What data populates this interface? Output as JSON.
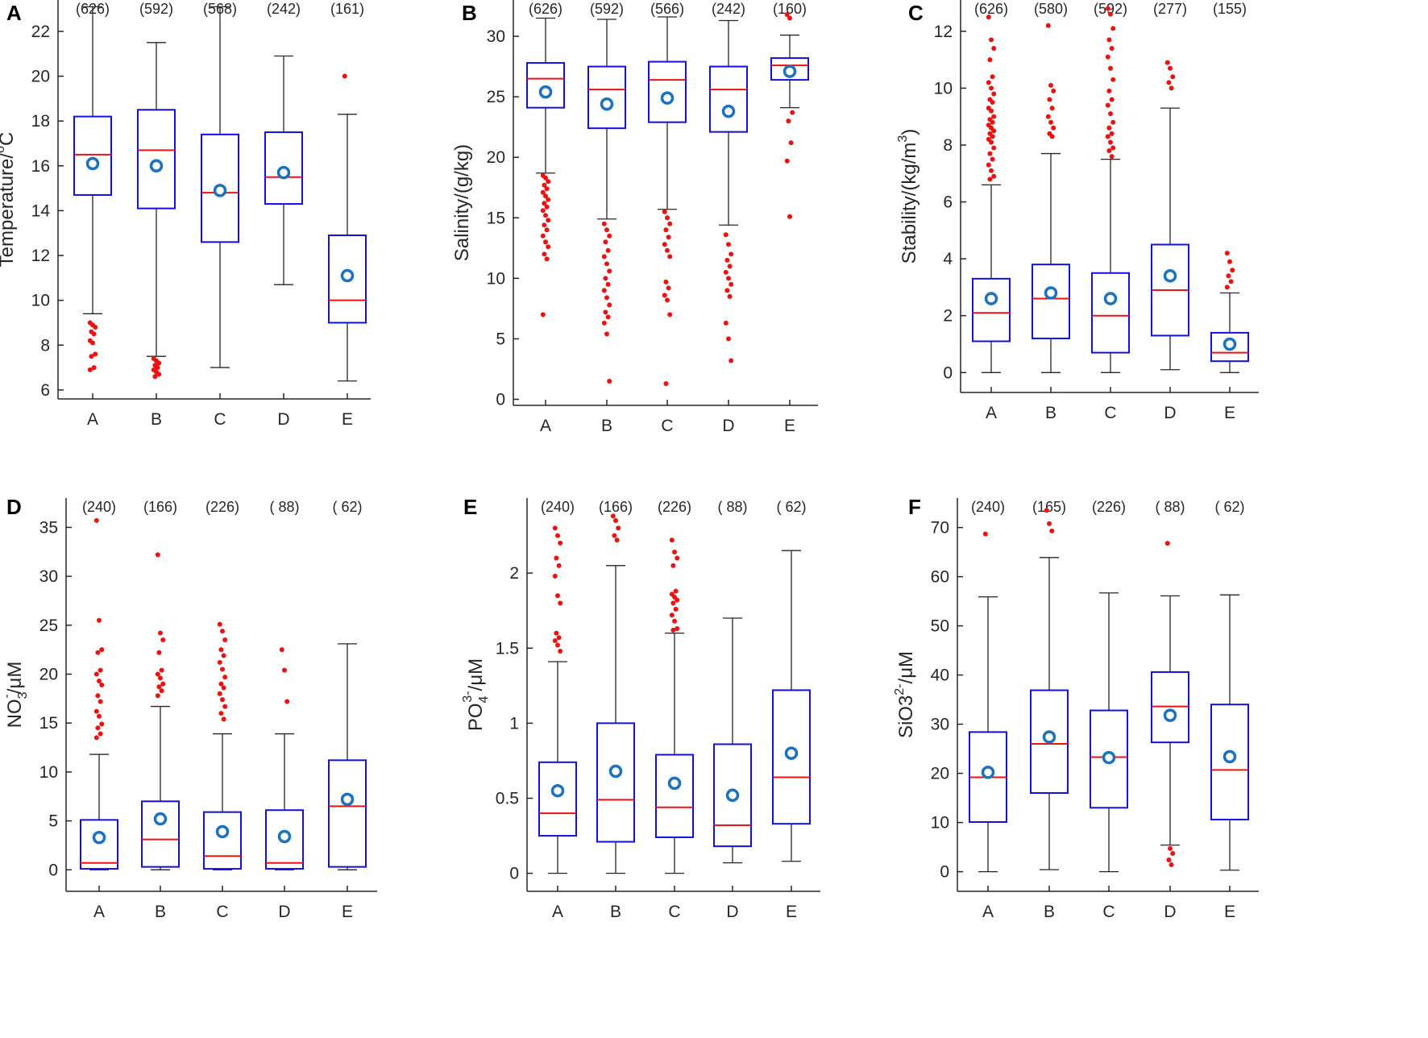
{
  "chart_data": [
    {
      "panel": "A",
      "type": "box",
      "categories": [
        "A",
        "B",
        "C",
        "D",
        "E"
      ],
      "counts": [
        "(626)",
        "(592)",
        "(568)",
        "(242)",
        "(161)"
      ],
      "ylabel_main": "Temperature/",
      "ylabel_sup": "o",
      "ylabel_tail": "C",
      "ylim": [
        5.6,
        23.4
      ],
      "yticks": [
        6,
        8,
        10,
        12,
        14,
        16,
        18,
        20,
        22
      ],
      "boxes": [
        {
          "wlo": 9.4,
          "q1": 14.7,
          "median": 16.5,
          "q3": 18.2,
          "whi": 23.1,
          "mean": 16.1,
          "outliers": [
            9.0,
            8.9,
            8.8,
            8.6,
            8.5,
            8.2,
            8.1,
            7.6,
            7.5,
            7.0,
            6.9
          ]
        },
        {
          "wlo": 7.5,
          "q1": 14.1,
          "median": 16.7,
          "q3": 18.5,
          "whi": 21.5,
          "mean": 16.0,
          "outliers": [
            7.4,
            7.3,
            7.2,
            7.1,
            7.0,
            6.9,
            6.8,
            6.7,
            6.6
          ]
        },
        {
          "wlo": 7.0,
          "q1": 12.6,
          "median": 14.8,
          "q3": 17.4,
          "whi": 23.1,
          "mean": 14.9,
          "outliers": []
        },
        {
          "wlo": 10.7,
          "q1": 14.3,
          "median": 15.5,
          "q3": 17.5,
          "whi": 20.9,
          "mean": 15.7,
          "outliers": []
        },
        {
          "wlo": 6.4,
          "q1": 9.0,
          "median": 10.0,
          "q3": 12.9,
          "whi": 18.3,
          "mean": 11.1,
          "outliers": [
            20.0
          ]
        }
      ]
    },
    {
      "panel": "B",
      "type": "box",
      "categories": [
        "A",
        "B",
        "C",
        "D",
        "E"
      ],
      "counts": [
        "(626)",
        "(592)",
        "(566)",
        "(242)",
        "(160)"
      ],
      "ylabel_main": "Salinity/(g/kg)",
      "ylabel_sup": "",
      "ylabel_tail": "",
      "ylim": [
        -0.5,
        33.0
      ],
      "yticks": [
        0,
        5,
        10,
        15,
        20,
        25,
        30
      ],
      "boxes": [
        {
          "wlo": 18.7,
          "q1": 24.1,
          "median": 26.5,
          "q3": 27.8,
          "whi": 31.5,
          "mean": 25.4,
          "outliers": [
            18.5,
            18.3,
            18.0,
            17.7,
            17.4,
            17.1,
            16.8,
            16.5,
            16.2,
            15.9,
            15.6,
            15.2,
            14.8,
            14.4,
            14.0,
            13.5,
            13.0,
            12.6,
            12.0,
            11.6,
            7.0
          ]
        },
        {
          "wlo": 14.9,
          "q1": 22.4,
          "median": 25.6,
          "q3": 27.5,
          "whi": 31.4,
          "mean": 24.4,
          "outliers": [
            14.5,
            14.0,
            13.5,
            13.0,
            12.3,
            11.8,
            11.2,
            10.6,
            10.0,
            9.5,
            9.0,
            8.4,
            7.8,
            7.2,
            6.8,
            6.3,
            5.4,
            1.5
          ]
        },
        {
          "wlo": 15.7,
          "q1": 22.9,
          "median": 26.4,
          "q3": 27.9,
          "whi": 31.6,
          "mean": 24.9,
          "outliers": [
            15.5,
            15.0,
            14.5,
            14.0,
            13.4,
            12.8,
            12.3,
            11.8,
            9.7,
            9.2,
            8.6,
            8.2,
            7.0,
            1.3
          ]
        },
        {
          "wlo": 14.4,
          "q1": 22.1,
          "median": 25.6,
          "q3": 27.5,
          "whi": 31.3,
          "mean": 23.8,
          "outliers": [
            13.6,
            12.8,
            12.0,
            11.5,
            11.0,
            10.5,
            10.0,
            9.5,
            9.0,
            8.5,
            6.3,
            5.0,
            3.2
          ]
        },
        {
          "wlo": 24.1,
          "q1": 26.4,
          "median": 27.6,
          "q3": 28.2,
          "whi": 30.1,
          "mean": 27.1,
          "outliers": [
            31.8,
            31.5,
            23.7,
            23.0,
            21.2,
            19.7,
            15.1
          ]
        }
      ]
    },
    {
      "panel": "C",
      "type": "box",
      "categories": [
        "A",
        "B",
        "C",
        "D",
        "E"
      ],
      "counts": [
        "(626)",
        "(580)",
        "(592)",
        "(277)",
        "(155)"
      ],
      "ylabel_main": "Stability/(kg/m",
      "ylabel_sup": "3",
      "ylabel_tail": ")",
      "ylim": [
        -0.7,
        13.1
      ],
      "yticks": [
        0,
        2,
        4,
        6,
        8,
        10,
        12
      ],
      "boxes": [
        {
          "wlo": 0.0,
          "q1": 1.1,
          "median": 2.1,
          "q3": 3.3,
          "whi": 6.6,
          "mean": 2.6,
          "outliers": [
            12.5,
            11.7,
            11.4,
            11.0,
            10.4,
            10.2,
            10.0,
            9.8,
            9.6,
            9.5,
            9.3,
            9.2,
            9.0,
            8.9,
            8.8,
            8.7,
            8.6,
            8.5,
            8.4,
            8.3,
            8.2,
            8.1,
            7.9,
            7.7,
            7.5,
            7.3,
            7.1,
            6.9,
            6.8
          ]
        },
        {
          "wlo": 0.0,
          "q1": 1.2,
          "median": 2.6,
          "q3": 3.8,
          "whi": 7.7,
          "mean": 2.8,
          "outliers": [
            12.2,
            10.1,
            9.9,
            9.6,
            9.3,
            9.0,
            8.8,
            8.6,
            8.4,
            8.3
          ]
        },
        {
          "wlo": 0.0,
          "q1": 0.7,
          "median": 2.0,
          "q3": 3.5,
          "whi": 7.5,
          "mean": 2.6,
          "outliers": [
            12.8,
            12.6,
            12.1,
            11.7,
            11.4,
            11.1,
            10.7,
            10.3,
            9.9,
            9.6,
            9.4,
            9.1,
            8.8,
            8.6,
            8.4,
            8.3,
            8.1,
            7.9,
            7.8,
            7.6
          ]
        },
        {
          "wlo": 0.1,
          "q1": 1.3,
          "median": 2.9,
          "q3": 4.5,
          "whi": 9.3,
          "mean": 3.4,
          "outliers": [
            10.9,
            10.7,
            10.4,
            10.2,
            10.0
          ]
        },
        {
          "wlo": 0.0,
          "q1": 0.4,
          "median": 0.7,
          "q3": 1.4,
          "whi": 2.8,
          "mean": 1.0,
          "outliers": [
            4.2,
            3.9,
            3.6,
            3.4,
            3.2,
            3.0
          ]
        }
      ]
    },
    {
      "panel": "D",
      "type": "box",
      "categories": [
        "A",
        "B",
        "C",
        "D",
        "E"
      ],
      "counts": [
        "(240)",
        "(166)",
        "(226)",
        "( 88)",
        "( 62)"
      ],
      "ylabel_main": "NO",
      "ylabel_sub": "3",
      "ylabel_sup": "-",
      "ylabel_tail": "/μM",
      "ylim": [
        -2.2,
        38.0
      ],
      "yticks": [
        0,
        5,
        10,
        15,
        20,
        25,
        30,
        35
      ],
      "boxes": [
        {
          "wlo": 0.0,
          "q1": 0.1,
          "median": 0.7,
          "q3": 5.1,
          "whi": 11.8,
          "mean": 3.3,
          "outliers": [
            35.7,
            25.5,
            22.5,
            22.2,
            20.4,
            20.0,
            19.3,
            18.9,
            17.8,
            17.2,
            16.2,
            15.7,
            14.9,
            14.5,
            13.9,
            13.5
          ]
        },
        {
          "wlo": 0.0,
          "q1": 0.3,
          "median": 3.1,
          "q3": 7.0,
          "whi": 16.7,
          "mean": 5.2,
          "outliers": [
            32.2,
            24.2,
            23.5,
            22.2,
            20.4,
            20.0,
            19.6,
            19.0,
            18.7,
            18.3,
            17.8
          ]
        },
        {
          "wlo": 0.0,
          "q1": 0.1,
          "median": 1.4,
          "q3": 5.9,
          "whi": 13.9,
          "mean": 3.9,
          "outliers": [
            25.1,
            24.4,
            23.5,
            22.5,
            21.9,
            21.2,
            20.5,
            19.7,
            19.0,
            18.6,
            18.0,
            17.4,
            16.7,
            16.0,
            15.4
          ]
        },
        {
          "wlo": 0.0,
          "q1": 0.1,
          "median": 0.7,
          "q3": 6.1,
          "whi": 13.9,
          "mean": 3.4,
          "outliers": [
            22.5,
            20.4,
            17.2
          ]
        },
        {
          "wlo": 0.0,
          "q1": 0.3,
          "median": 6.5,
          "q3": 11.2,
          "whi": 23.1,
          "mean": 7.2,
          "outliers": []
        }
      ]
    },
    {
      "panel": "E",
      "type": "box",
      "categories": [
        "A",
        "B",
        "C",
        "D",
        "E"
      ],
      "counts": [
        "(240)",
        "(166)",
        "(226)",
        "( 88)",
        "( 62)"
      ],
      "ylabel_main": "PO",
      "ylabel_sub": "4",
      "ylabel_sup": "3-",
      "ylabel_tail": "/μM",
      "ylim": [
        -0.12,
        2.5
      ],
      "yticks": [
        0,
        0.5,
        1,
        1.5,
        2
      ],
      "boxes": [
        {
          "wlo": 0.0,
          "q1": 0.25,
          "median": 0.4,
          "q3": 0.74,
          "whi": 1.41,
          "mean": 0.55,
          "outliers": [
            2.3,
            2.25,
            2.2,
            2.1,
            2.05,
            1.98,
            1.85,
            1.8,
            1.6,
            1.57,
            1.55,
            1.52,
            1.48
          ]
        },
        {
          "wlo": 0.0,
          "q1": 0.21,
          "median": 0.49,
          "q3": 1.0,
          "whi": 2.05,
          "mean": 0.68,
          "outliers": [
            2.38,
            2.35,
            2.3,
            2.25,
            2.22
          ]
        },
        {
          "wlo": 0.0,
          "q1": 0.24,
          "median": 0.44,
          "q3": 0.79,
          "whi": 1.6,
          "mean": 0.6,
          "outliers": [
            2.22,
            2.14,
            2.1,
            2.05,
            1.88,
            1.86,
            1.84,
            1.82,
            1.8,
            1.76,
            1.72,
            1.68,
            1.63,
            1.62
          ]
        },
        {
          "wlo": 0.07,
          "q1": 0.18,
          "median": 0.32,
          "q3": 0.86,
          "whi": 1.7,
          "mean": 0.52,
          "outliers": []
        },
        {
          "wlo": 0.08,
          "q1": 0.33,
          "median": 0.64,
          "q3": 1.22,
          "whi": 2.15,
          "mean": 0.8,
          "outliers": []
        }
      ]
    },
    {
      "panel": "F",
      "type": "box",
      "categories": [
        "A",
        "B",
        "C",
        "D",
        "E"
      ],
      "counts": [
        "(240)",
        "(165)",
        "(226)",
        "( 88)",
        "( 62)"
      ],
      "ylabel_main": "SiO3",
      "ylabel_sup": "2-",
      "ylabel_tail": "/μM",
      "ylim": [
        -4.0,
        76.0
      ],
      "yticks": [
        0,
        10,
        20,
        30,
        40,
        50,
        60,
        70
      ],
      "boxes": [
        {
          "wlo": 0.0,
          "q1": 10.1,
          "median": 19.2,
          "q3": 28.4,
          "whi": 55.9,
          "mean": 20.2,
          "outliers": [
            68.7
          ]
        },
        {
          "wlo": 0.4,
          "q1": 16.0,
          "median": 26.0,
          "q3": 36.9,
          "whi": 63.9,
          "mean": 27.4,
          "outliers": [
            73.5,
            70.8,
            69.3
          ]
        },
        {
          "wlo": 0.0,
          "q1": 13.0,
          "median": 23.3,
          "q3": 32.8,
          "whi": 56.7,
          "mean": 23.2,
          "outliers": []
        },
        {
          "wlo": 5.4,
          "q1": 26.3,
          "median": 33.6,
          "q3": 40.6,
          "whi": 56.1,
          "mean": 31.8,
          "outliers": [
            66.8,
            4.7,
            3.7,
            2.4,
            1.4
          ]
        },
        {
          "wlo": 0.3,
          "q1": 10.6,
          "median": 20.7,
          "q3": 34.0,
          "whi": 56.3,
          "mean": 23.4,
          "outliers": []
        }
      ]
    }
  ]
}
